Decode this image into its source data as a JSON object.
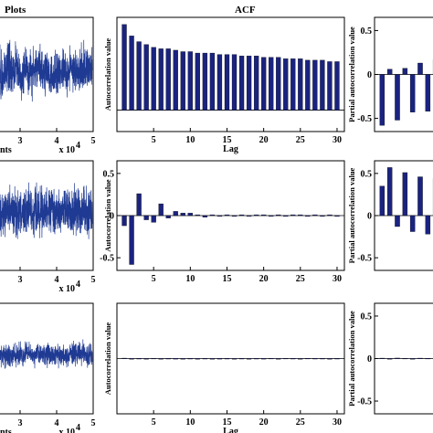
{
  "headers": {
    "left": "Plots",
    "middle": "ACF"
  },
  "colors": {
    "bar": "#1a237e",
    "signal": "#1f3a93",
    "frame": "#000000"
  },
  "chart_data": [
    {
      "id": "ts1",
      "type": "line",
      "panel": "time-series",
      "row": 0,
      "xlabel": "nts",
      "x_multiplier": "x 10",
      "x_exponent": "4",
      "x_ticks": [
        3,
        4,
        5
      ],
      "xlim": [
        2.35,
        5
      ],
      "amplitude": 0.34,
      "wander": 0.12
    },
    {
      "id": "acf1",
      "type": "bar",
      "panel": "acf",
      "row": 0,
      "xlabel": "Lag",
      "ylabel": "Autocorrelation value",
      "x_ticks": [
        5,
        10,
        15,
        20,
        25,
        30
      ],
      "xlim": [
        0,
        31
      ],
      "y_ticks": [],
      "ylim": [
        -0.15,
        0.65
      ],
      "x": [
        1,
        2,
        3,
        4,
        5,
        6,
        7,
        8,
        9,
        10,
        11,
        12,
        13,
        14,
        15,
        16,
        17,
        18,
        19,
        20,
        21,
        22,
        23,
        24,
        25,
        26,
        27,
        28,
        29,
        30
      ],
      "values": [
        0.6,
        0.52,
        0.48,
        0.46,
        0.44,
        0.43,
        0.43,
        0.42,
        0.41,
        0.41,
        0.4,
        0.4,
        0.4,
        0.39,
        0.39,
        0.39,
        0.38,
        0.38,
        0.38,
        0.37,
        0.37,
        0.37,
        0.36,
        0.36,
        0.36,
        0.35,
        0.35,
        0.35,
        0.34,
        0.34
      ]
    },
    {
      "id": "pacf1",
      "type": "bar",
      "panel": "pacf",
      "row": 0,
      "ylabel": "Partial autocorrelation value",
      "x_ticks": [],
      "xlim": [
        0,
        8.4
      ],
      "y_ticks": [
        "0.5",
        "0",
        "-0.5"
      ],
      "y_tick_values": [
        0.5,
        0,
        -0.5
      ],
      "ylim": [
        -0.65,
        0.65
      ],
      "x": [
        1,
        2,
        3,
        4,
        5,
        6,
        7,
        8
      ],
      "values": [
        -0.58,
        0.06,
        -0.52,
        0.07,
        -0.43,
        0.13,
        -0.42,
        0.17
      ]
    },
    {
      "id": "ts2",
      "type": "line",
      "panel": "time-series",
      "row": 1,
      "xlabel": "",
      "x_multiplier": "x 10",
      "x_exponent": "4",
      "x_ticks": [
        3,
        4,
        5
      ],
      "xlim": [
        2.35,
        5
      ],
      "amplitude": 0.36,
      "wander": 0.02
    },
    {
      "id": "acf2",
      "type": "bar",
      "panel": "acf",
      "row": 1,
      "xlabel": "",
      "ylabel": "Autocorrelation value",
      "x_ticks": [
        5,
        10,
        15,
        20,
        25,
        30
      ],
      "xlim": [
        0,
        31
      ],
      "y_ticks": [
        "0.5",
        "0",
        "-0.5"
      ],
      "y_tick_values": [
        0.5,
        0,
        -0.5
      ],
      "ylim": [
        -0.65,
        0.65
      ],
      "x": [
        1,
        2,
        3,
        4,
        5,
        6,
        7,
        8,
        9,
        10,
        11,
        12,
        13,
        14,
        15,
        16,
        17,
        18,
        19,
        20,
        21,
        22,
        23,
        24,
        25,
        26,
        27,
        28,
        29,
        30
      ],
      "values": [
        -0.12,
        -0.58,
        0.26,
        -0.05,
        -0.08,
        0.14,
        -0.03,
        0.05,
        0.03,
        0.03,
        0.01,
        -0.02,
        0.01,
        -0.01,
        0.01,
        -0.01,
        0.01,
        -0.01,
        0.01,
        0.01,
        -0.01,
        0.01,
        -0.01,
        0.01,
        0.01,
        -0.01,
        0.01,
        -0.01,
        0.01,
        -0.01
      ]
    },
    {
      "id": "pacf2",
      "type": "bar",
      "panel": "pacf",
      "row": 1,
      "ylabel": "Partial autocorrelation value",
      "x_ticks": [],
      "xlim": [
        0,
        8.4
      ],
      "y_ticks": [
        "0.5",
        "0",
        "-0.5"
      ],
      "y_tick_values": [
        0.5,
        0,
        -0.5
      ],
      "ylim": [
        -0.65,
        0.65
      ],
      "x": [
        1,
        2,
        3,
        4,
        5,
        6,
        7,
        8
      ],
      "values": [
        0.35,
        0.57,
        -0.13,
        0.51,
        -0.19,
        0.46,
        -0.22,
        0.44
      ]
    },
    {
      "id": "ts3",
      "type": "line",
      "panel": "time-series",
      "row": 2,
      "xlabel": "nts",
      "x_multiplier": "x 10",
      "x_exponent": "4",
      "x_ticks": [
        3,
        4,
        5
      ],
      "xlim": [
        2.35,
        5
      ],
      "amplitude": 0.17,
      "wander": 0.02
    },
    {
      "id": "acf3",
      "type": "bar",
      "panel": "acf",
      "row": 2,
      "xlabel": "Lag",
      "ylabel": "Autocorrelation value",
      "x_ticks": [
        5,
        10,
        15,
        20,
        25,
        30
      ],
      "xlim": [
        0,
        31
      ],
      "y_ticks": [],
      "ylim": [
        -0.65,
        0.65
      ],
      "x": [
        1,
        2,
        3,
        4,
        5,
        6,
        7,
        8,
        9,
        10,
        11,
        12,
        13,
        14,
        15,
        16,
        17,
        18,
        19,
        20,
        21,
        22,
        23,
        24,
        25,
        26,
        27,
        28,
        29,
        30
      ],
      "values": [
        0.005,
        -0.004,
        0.003,
        -0.003,
        0.004,
        -0.003,
        0.003,
        0.002,
        -0.003,
        0.003,
        -0.002,
        0.003,
        -0.003,
        0.002,
        0.003,
        -0.002,
        0.003,
        -0.002,
        0.003,
        0.002,
        0.004,
        -0.003,
        0.004,
        0.003,
        -0.003,
        0.004,
        0.003,
        0.003,
        -0.002,
        0.003
      ]
    },
    {
      "id": "pacf3",
      "type": "bar",
      "panel": "pacf",
      "row": 2,
      "ylabel": "Partial autocorrelation value",
      "x_ticks": [],
      "xlim": [
        0,
        8.4
      ],
      "y_ticks": [
        "0.5",
        "0",
        "-0.5"
      ],
      "y_tick_values": [
        0.5,
        0,
        -0.5
      ],
      "ylim": [
        -0.65,
        0.65
      ],
      "x": [
        1,
        2,
        3,
        4,
        5,
        6,
        7,
        8
      ],
      "values": [
        0.005,
        -0.004,
        0.006,
        0.004,
        -0.005,
        0.005,
        0.004,
        0.006
      ]
    }
  ]
}
